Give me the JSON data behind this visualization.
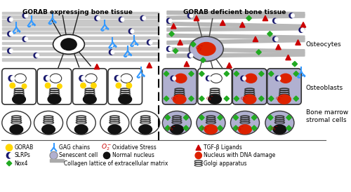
{
  "title_left": "GORAB expressing bone tissue",
  "title_right": "GORAB deficient bone tissue",
  "label_osteocytes": "Osteocytes",
  "label_osteoblasts": "Osteoblasts",
  "label_bone_marrow": "Bone marrow\nstromal cells",
  "bg_color": "#ffffff",
  "senescent_color": "#b0b0d0",
  "cell_border": "#333333",
  "collagen_left_color": "#c8c8c8",
  "collagen_right_color": "#b0b0b0"
}
